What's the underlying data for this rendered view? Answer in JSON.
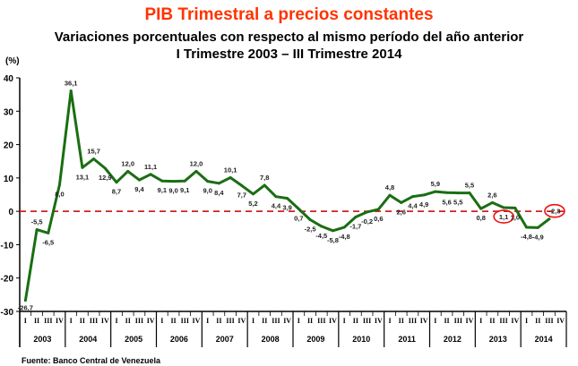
{
  "chart_data": {
    "type": "line",
    "title": "PIB Trimestral a precios constantes",
    "subtitle": "Variaciones porcentuales con respecto al mismo período del año anterior",
    "subtitle2": "I Trimestre 2003 – III Trimestre 2014",
    "ylabel": "(%)",
    "ylim": [
      -30,
      40
    ],
    "yticks": [
      -30,
      -20,
      -10,
      0,
      10,
      20,
      30,
      40
    ],
    "quarter_labels": [
      "I",
      "II",
      "III",
      "IV"
    ],
    "years": [
      "2003",
      "2004",
      "2005",
      "2006",
      "2007",
      "2008",
      "2009",
      "2010",
      "2011",
      "2012",
      "2013",
      "2014"
    ],
    "series": [
      {
        "name": "PIB",
        "color": "#1a6e12",
        "values": [
          -26.7,
          -5.5,
          -6.5,
          8.0,
          36.1,
          13.1,
          15.7,
          12.9,
          8.7,
          12.0,
          9.4,
          11.1,
          9.1,
          9.0,
          9.1,
          12.0,
          9.0,
          8.4,
          10.1,
          7.7,
          5.2,
          7.8,
          4.4,
          3.9,
          0.7,
          -2.5,
          -4.5,
          -5.8,
          -4.8,
          -1.7,
          -0.2,
          0.6,
          4.8,
          2.6,
          4.4,
          4.9,
          5.9,
          5.6,
          5.5,
          5.5,
          0.8,
          2.6,
          1.1,
          1.0,
          -4.8,
          -4.9,
          -2.3
        ],
        "labels": [
          "-26,7",
          "-5,5",
          "-6,5",
          "8,0",
          "36,1",
          "13,1",
          "15,7",
          "12,9",
          "8,7",
          "12,0",
          "9,4",
          "11,1",
          "9,1",
          "9,0",
          "9,1",
          "12,0",
          "9,0",
          "8,4",
          "10,1",
          "7,7",
          "5,2",
          "7,8",
          "4,4",
          "3,9",
          "0,7",
          "-2,5",
          "-4,5",
          "-5,8",
          "-4,8",
          "-1,7",
          "-0,2",
          "0,6",
          "4,8",
          "2,6",
          "4,4",
          "4,9",
          "5,9",
          "5,6",
          "5,5",
          "5,5",
          "0,8",
          "2,6",
          "1,1",
          "1,0",
          "-4,8",
          "-4,9",
          "-2,3"
        ]
      }
    ],
    "highlighted": [
      "1,1",
      "-2,3"
    ],
    "reference_line": 0,
    "source": "Fuente: Banco Central de Venezuela"
  },
  "colors": {
    "title": "#ff3300",
    "zero_line": "#cc2222",
    "line": "#1a6e12",
    "highlight": "#ee1111"
  }
}
